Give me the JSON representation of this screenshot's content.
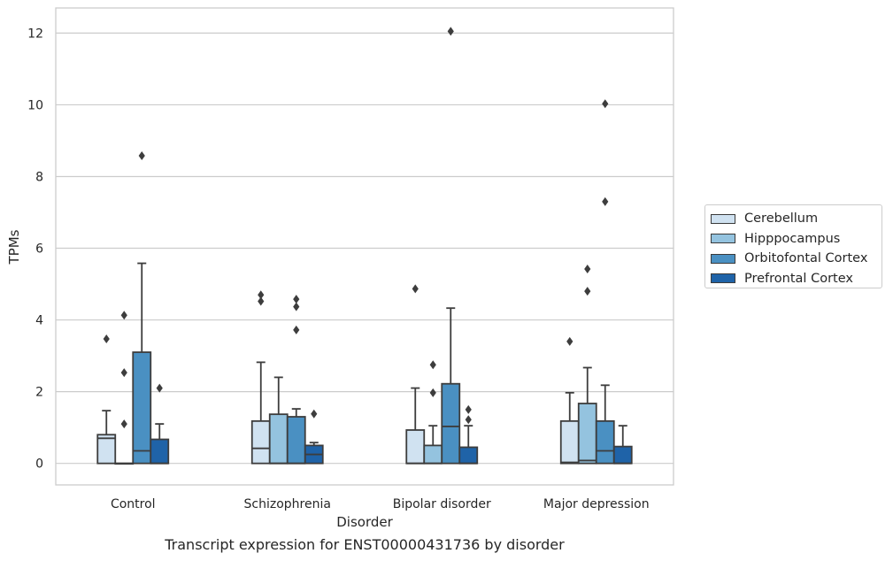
{
  "caption": "Transcript expression for ENST00000431736 by disorder",
  "chart_data": {
    "type": "box",
    "xlabel": "Disorder",
    "ylabel": "TPMs",
    "ylim": [
      -0.6,
      12.7
    ],
    "yticks": [
      0,
      2,
      4,
      6,
      8,
      10,
      12
    ],
    "grid": "horizontal",
    "legend_position": "right",
    "categories": [
      "Control",
      "Schizophrenia",
      "Bipolar disorder",
      "Major depression"
    ],
    "series": [
      {
        "name": "Cerebellum",
        "color": "#d0e2f1",
        "boxes": [
          {
            "whisker_low": 0,
            "q1": 0,
            "median": 0.7,
            "q3": 0.8,
            "whisker_high": 1.47,
            "outliers": [
              3.47
            ]
          },
          {
            "whisker_low": 0,
            "q1": 0,
            "median": 0.42,
            "q3": 1.18,
            "whisker_high": 2.82,
            "outliers": [
              4.52,
              4.7
            ]
          },
          {
            "whisker_low": 0,
            "q1": 0,
            "median": 0,
            "q3": 0.93,
            "whisker_high": 2.1,
            "outliers": [
              4.87
            ]
          },
          {
            "whisker_low": 0,
            "q1": 0,
            "median": 0.03,
            "q3": 1.18,
            "whisker_high": 1.97,
            "outliers": [
              3.4
            ]
          }
        ]
      },
      {
        "name": "Hipppocampus",
        "color": "#94c3df",
        "boxes": [
          {
            "whisker_low": 0,
            "q1": 0,
            "median": 0,
            "q3": 0,
            "whisker_high": 0,
            "outliers": [
              1.1,
              2.53,
              4.13
            ]
          },
          {
            "whisker_low": 0,
            "q1": 0,
            "median": 0,
            "q3": 1.37,
            "whisker_high": 2.4,
            "outliers": []
          },
          {
            "whisker_low": 0,
            "q1": 0,
            "median": 0,
            "q3": 0.5,
            "whisker_high": 1.05,
            "outliers": [
              1.97,
              2.75
            ]
          },
          {
            "whisker_low": 0,
            "q1": 0,
            "median": 0.08,
            "q3": 1.67,
            "whisker_high": 2.67,
            "outliers": [
              4.8,
              5.42
            ]
          }
        ]
      },
      {
        "name": "Orbitofontal Cortex",
        "color": "#4a90c2",
        "boxes": [
          {
            "whisker_low": 0,
            "q1": 0,
            "median": 0.35,
            "q3": 3.1,
            "whisker_high": 5.58,
            "outliers": [
              8.58
            ]
          },
          {
            "whisker_low": 0,
            "q1": 0,
            "median": 0,
            "q3": 1.3,
            "whisker_high": 1.52,
            "outliers": [
              3.72,
              4.37,
              4.58
            ]
          },
          {
            "whisker_low": 0,
            "q1": 0,
            "median": 1.03,
            "q3": 2.22,
            "whisker_high": 4.33,
            "outliers": [
              12.05
            ]
          },
          {
            "whisker_low": 0,
            "q1": 0,
            "median": 0.35,
            "q3": 1.18,
            "whisker_high": 2.18,
            "outliers": [
              7.3,
              10.03
            ]
          }
        ]
      },
      {
        "name": "Prefrontal Cortex",
        "color": "#1f63a8",
        "boxes": [
          {
            "whisker_low": 0,
            "q1": 0,
            "median": 0,
            "q3": 0.67,
            "whisker_high": 1.1,
            "outliers": [
              2.1
            ]
          },
          {
            "whisker_low": 0,
            "q1": 0,
            "median": 0.25,
            "q3": 0.5,
            "whisker_high": 0.58,
            "outliers": [
              1.38
            ]
          },
          {
            "whisker_low": 0,
            "q1": 0,
            "median": 0,
            "q3": 0.45,
            "whisker_high": 1.05,
            "outliers": [
              1.22,
              1.5
            ]
          },
          {
            "whisker_low": 0,
            "q1": 0,
            "median": 0,
            "q3": 0.47,
            "whisker_high": 1.05,
            "outliers": []
          }
        ]
      }
    ]
  }
}
